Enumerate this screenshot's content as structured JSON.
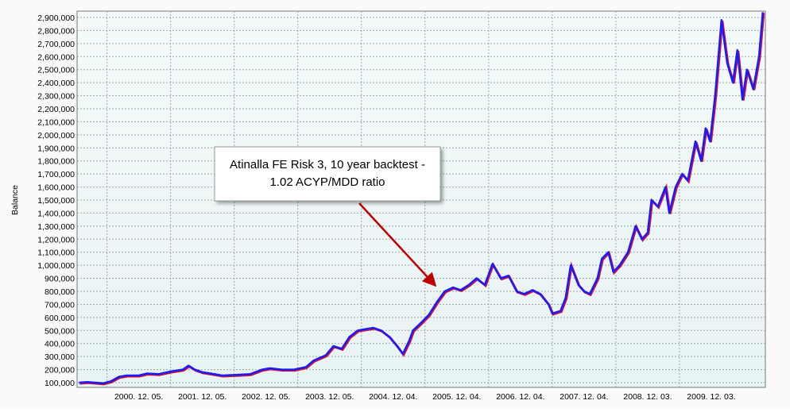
{
  "chart_data": {
    "type": "line",
    "y_label": "Balance",
    "annotation_lines": [
      "Atinalla FE Risk 3, 10 year backtest -",
      "1.02 ACYP/MDD ratio"
    ],
    "grid": true,
    "xlim": [
      1999.96,
      2010.78
    ],
    "ylim": [
      63500,
      2948700
    ],
    "xticks": [
      {
        "value": 2000.93,
        "label": "2000. 12. 05."
      },
      {
        "value": 2001.93,
        "label": "2001. 12. 05."
      },
      {
        "value": 2002.93,
        "label": "2002. 12. 05."
      },
      {
        "value": 2003.93,
        "label": "2003. 12. 05."
      },
      {
        "value": 2004.93,
        "label": "2004. 12. 04."
      },
      {
        "value": 2005.93,
        "label": "2005. 12. 04."
      },
      {
        "value": 2006.93,
        "label": "2006. 12. 04."
      },
      {
        "value": 2007.93,
        "label": "2007. 12. 04."
      },
      {
        "value": 2008.93,
        "label": "2008. 12. 03."
      },
      {
        "value": 2009.93,
        "label": "2009. 12. 03."
      }
    ],
    "yticks": [
      {
        "value": 100000,
        "label": "100,000"
      },
      {
        "value": 200000,
        "label": "200,000"
      },
      {
        "value": 300000,
        "label": "300,000"
      },
      {
        "value": 400000,
        "label": "400,000"
      },
      {
        "value": 500000,
        "label": "500,000"
      },
      {
        "value": 600000,
        "label": "600,000"
      },
      {
        "value": 700000,
        "label": "700,000"
      },
      {
        "value": 800000,
        "label": "800,000"
      },
      {
        "value": 900000,
        "label": "900,000"
      },
      {
        "value": 1000000,
        "label": "1,000,000"
      },
      {
        "value": 1100000,
        "label": "1,100,000"
      },
      {
        "value": 1200000,
        "label": "1,200,000"
      },
      {
        "value": 1300000,
        "label": "1,300,000"
      },
      {
        "value": 1400000,
        "label": "1,400,000"
      },
      {
        "value": 1500000,
        "label": "1,500,000"
      },
      {
        "value": 1600000,
        "label": "1,600,000"
      },
      {
        "value": 1700000,
        "label": "1,700,000"
      },
      {
        "value": 1800000,
        "label": "1,800,000"
      },
      {
        "value": 1900000,
        "label": "1,900,000"
      },
      {
        "value": 2000000,
        "label": "2,000,000"
      },
      {
        "value": 2100000,
        "label": "2,100,000"
      },
      {
        "value": 2200000,
        "label": "2,200,000"
      },
      {
        "value": 2300000,
        "label": "2,300,000"
      },
      {
        "value": 2400000,
        "label": "2,400,000"
      },
      {
        "value": 2500000,
        "label": "2,500,000"
      },
      {
        "value": 2600000,
        "label": "2,600,000"
      },
      {
        "value": 2700000,
        "label": "2,700,000"
      },
      {
        "value": 2800000,
        "label": "2,800,000"
      },
      {
        "value": 2900000,
        "label": "2,900,000"
      }
    ],
    "x": [
      1999.99,
      2000.12,
      2000.24,
      2000.37,
      2000.49,
      2000.62,
      2000.74,
      2000.93,
      2001.06,
      2001.24,
      2001.43,
      2001.62,
      2001.71,
      2001.81,
      2001.93,
      2002.06,
      2002.24,
      2002.49,
      2002.68,
      2002.87,
      2002.99,
      2003.18,
      2003.37,
      2003.56,
      2003.68,
      2003.87,
      2003.99,
      2004.12,
      2004.24,
      2004.37,
      2004.49,
      2004.62,
      2004.74,
      2004.87,
      2004.99,
      2005.08,
      2005.18,
      2005.24,
      2005.37,
      2005.49,
      2005.62,
      2005.74,
      2005.87,
      2005.99,
      2006.12,
      2006.24,
      2006.37,
      2006.49,
      2006.62,
      2006.74,
      2006.87,
      2006.99,
      2007.12,
      2007.24,
      2007.37,
      2007.43,
      2007.56,
      2007.64,
      2007.72,
      2007.84,
      2007.93,
      2008.02,
      2008.14,
      2008.21,
      2008.31,
      2008.39,
      2008.49,
      2008.62,
      2008.74,
      2008.84,
      2008.93,
      2008.99,
      2009.09,
      2009.21,
      2009.27,
      2009.37,
      2009.47,
      2009.56,
      2009.68,
      2009.77,
      2009.84,
      2009.91,
      2009.99,
      2010.09,
      2010.18,
      2010.27,
      2010.34,
      2010.42,
      2010.49,
      2010.59,
      2010.68,
      2010.74
    ],
    "series": [
      {
        "color": "#1a1aff",
        "shadow_color": "#d0103a",
        "values": [
          100000,
          105000,
          100000,
          95000,
          110000,
          145000,
          155000,
          155000,
          170000,
          165000,
          185000,
          200000,
          230000,
          200000,
          180000,
          170000,
          155000,
          160000,
          165000,
          200000,
          210000,
          200000,
          200000,
          220000,
          270000,
          310000,
          380000,
          360000,
          450000,
          500000,
          510000,
          520000,
          500000,
          450000,
          380000,
          320000,
          420000,
          500000,
          560000,
          620000,
          720000,
          800000,
          830000,
          810000,
          850000,
          900000,
          850000,
          1010000,
          900000,
          920000,
          800000,
          780000,
          810000,
          780000,
          700000,
          630000,
          650000,
          750000,
          1000000,
          850000,
          800000,
          780000,
          900000,
          1050000,
          1100000,
          950000,
          1000000,
          1100000,
          1300000,
          1200000,
          1250000,
          1500000,
          1450000,
          1600000,
          1400000,
          1600000,
          1700000,
          1650000,
          1950000,
          1800000,
          2050000,
          1950000,
          2300000,
          2880000,
          2550000,
          2400000,
          2650000,
          2270000,
          2500000,
          2350000,
          2600000,
          2940000
        ]
      }
    ]
  }
}
